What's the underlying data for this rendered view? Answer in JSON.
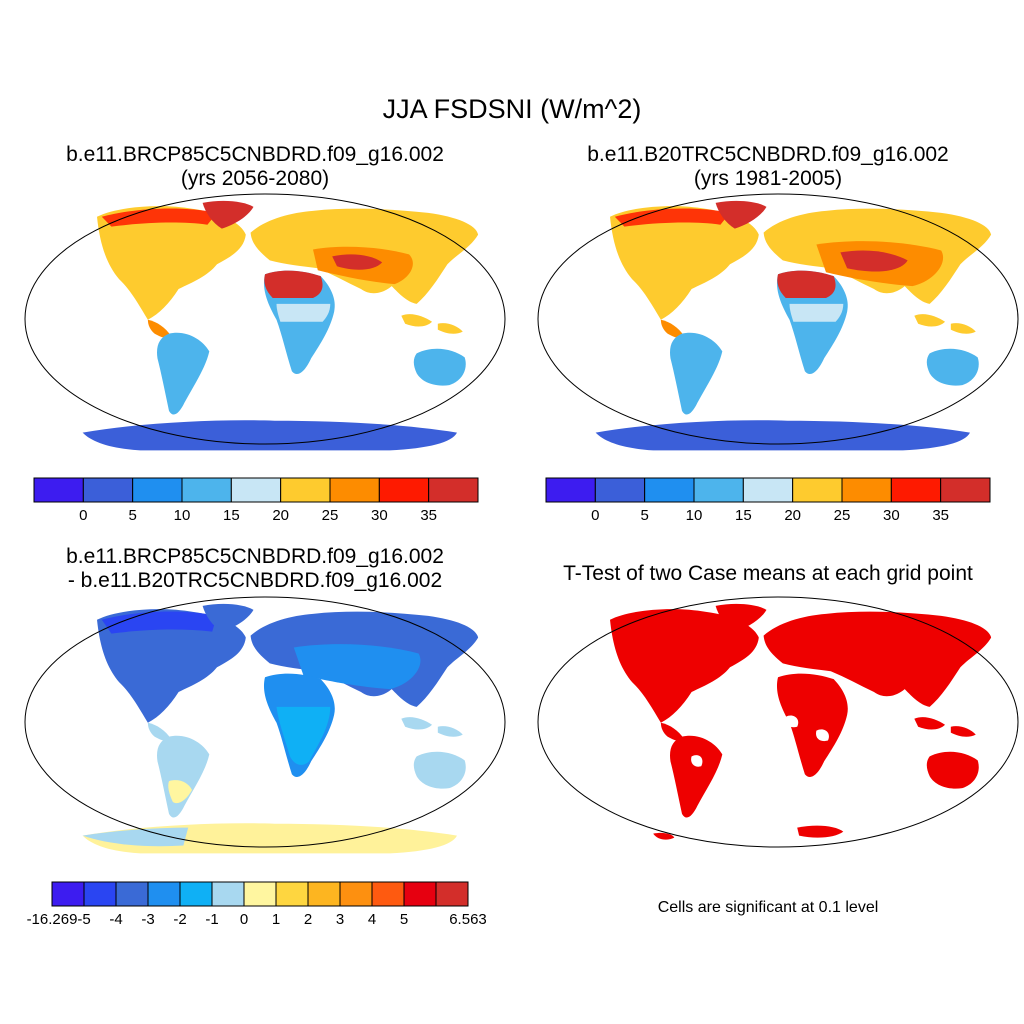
{
  "title": "JJA FSDSNI (W/m^2)",
  "panels": [
    {
      "line1": "b.e11.BRCP85C5CNBDRD.f09_g16.002",
      "line2": "(yrs 2056-2080)"
    },
    {
      "line1": "b.e11.B20TRC5CNBDRD.f09_g16.002",
      "line2": "(yrs 1981-2005)"
    },
    {
      "line1": "b.e11.BRCP85C5CNBDRD.f09_g16.002",
      "line2": "- b.e11.B20TRC5CNBDRD.f09_g16.002"
    },
    {
      "line1": "T-Test of two Case means at each grid point",
      "line2": ""
    }
  ],
  "colorbar_abs": {
    "colors": [
      "#3d1cf0",
      "#3b5fd9",
      "#1f8ff0",
      "#4db4ec",
      "#c8e6f5",
      "#fecb2e",
      "#fd8c00",
      "#fe1a00",
      "#d32e2a"
    ],
    "labels": [
      "0",
      "5",
      "10",
      "15",
      "20",
      "25",
      "30",
      "35"
    ]
  },
  "colorbar_diff": {
    "colors": [
      "#3d1cf0",
      "#2a45f2",
      "#3a6ad6",
      "#1f8ff0",
      "#0fb0f5",
      "#a8d8f0",
      "#fff6a0",
      "#fed640",
      "#fdb520",
      "#fd9010",
      "#fe5a10",
      "#e60010",
      "#d32e2a"
    ],
    "labels": [
      "-16.269",
      "-5",
      "-4",
      "-3",
      "-2",
      "-1",
      "0",
      "1",
      "2",
      "3",
      "4",
      "5",
      "6.563"
    ]
  },
  "ttest_note": "Cells are significant at 0.1 level",
  "colors": {
    "land_ttest": "#ee0000",
    "antarctica_abs": "#3b5fd9",
    "antarctica_diff": "#fff29a"
  }
}
